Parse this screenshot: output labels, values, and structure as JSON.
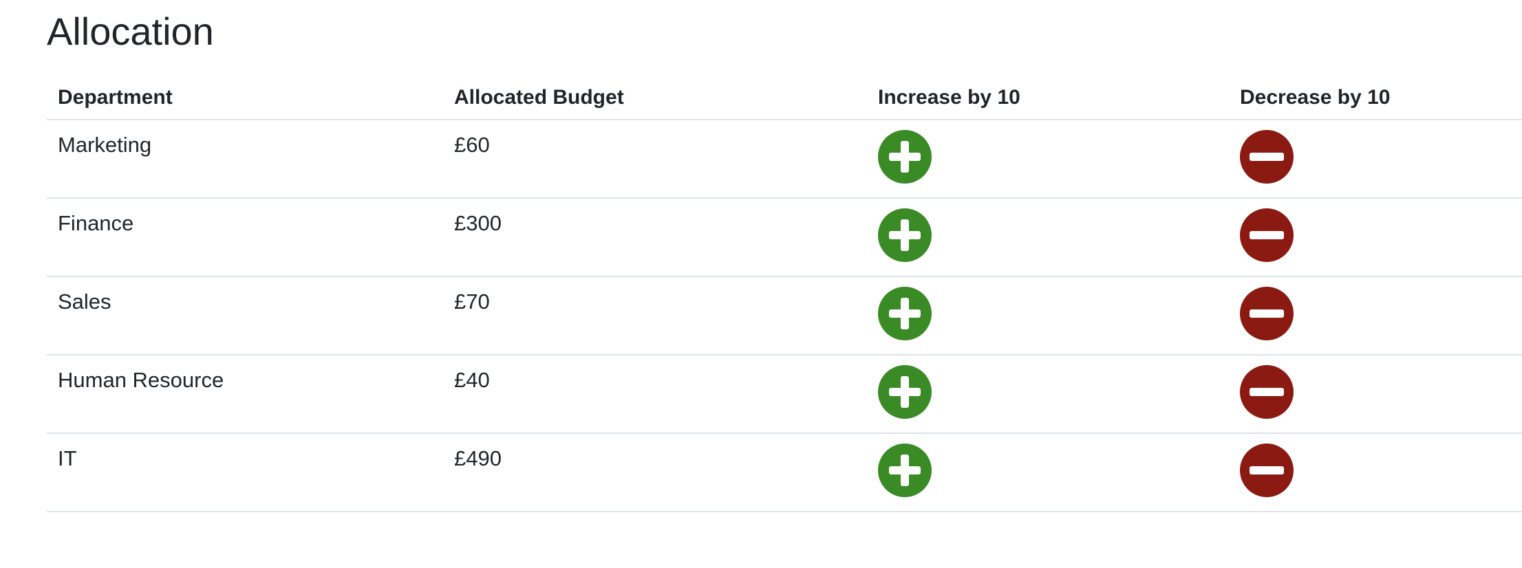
{
  "allocation": {
    "title": "Allocation",
    "columns": {
      "department": "Department",
      "budget": "Allocated Budget",
      "increase": "Increase by 10",
      "decrease": "Decrease by 10"
    },
    "rows": [
      {
        "department": "Marketing",
        "budget": "£60"
      },
      {
        "department": "Finance",
        "budget": "£300"
      },
      {
        "department": "Sales",
        "budget": "£70"
      },
      {
        "department": "Human Resource",
        "budget": "£40"
      },
      {
        "department": "IT",
        "budget": "£490"
      }
    ],
    "icons": {
      "increase": "plus-circle-icon",
      "decrease": "minus-circle-icon"
    },
    "colors": {
      "increase": "#3a8a26",
      "decrease": "#8a1a12"
    }
  },
  "next_section": {
    "title": ""
  }
}
